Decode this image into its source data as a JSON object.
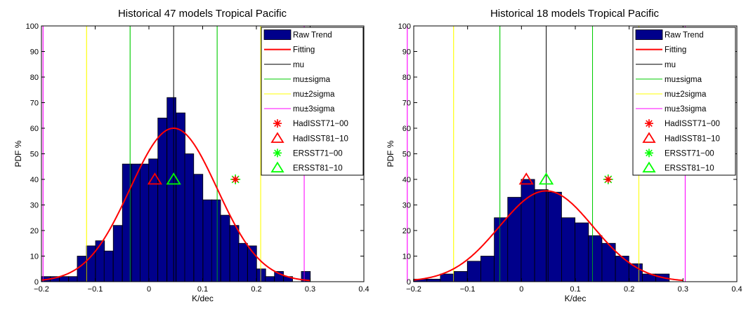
{
  "chart_data": [
    {
      "type": "bar",
      "title": "Historical 47 models Tropical Pacific",
      "xlabel": "K/dec",
      "ylabel": "PDF %",
      "xlim": [
        -0.2,
        0.4
      ],
      "ylim": [
        0,
        100
      ],
      "xticks": [
        -0.2,
        -0.1,
        0,
        0.1,
        0.2,
        0.3,
        0.4
      ],
      "yticks": [
        0,
        10,
        20,
        30,
        40,
        50,
        60,
        70,
        80,
        90,
        100
      ],
      "xtick_labels": [
        "−0.2",
        "−0.1",
        "0",
        "0.1",
        "0.2",
        "0.3",
        "0.4"
      ],
      "ytick_labels": [
        "0",
        "10",
        "20",
        "30",
        "40",
        "50",
        "60",
        "70",
        "80",
        "90",
        "100"
      ],
      "bin_width": 0.0167,
      "bins": [
        {
          "x": -0.192,
          "y": 2
        },
        {
          "x": -0.175,
          "y": 2
        },
        {
          "x": -0.158,
          "y": 2
        },
        {
          "x": -0.141,
          "y": 2
        },
        {
          "x": -0.125,
          "y": 10
        },
        {
          "x": -0.108,
          "y": 14
        },
        {
          "x": -0.091,
          "y": 16
        },
        {
          "x": -0.075,
          "y": 12
        },
        {
          "x": -0.058,
          "y": 22
        },
        {
          "x": -0.041,
          "y": 46
        },
        {
          "x": -0.024,
          "y": 46
        },
        {
          "x": -0.008,
          "y": 46
        },
        {
          "x": 0.008,
          "y": 48
        },
        {
          "x": 0.025,
          "y": 64
        },
        {
          "x": 0.042,
          "y": 72
        },
        {
          "x": 0.059,
          "y": 66
        },
        {
          "x": 0.075,
          "y": 50
        },
        {
          "x": 0.092,
          "y": 42
        },
        {
          "x": 0.109,
          "y": 32
        },
        {
          "x": 0.125,
          "y": 32
        },
        {
          "x": 0.142,
          "y": 26
        },
        {
          "x": 0.159,
          "y": 22
        },
        {
          "x": 0.175,
          "y": 15
        },
        {
          "x": 0.192,
          "y": 14
        },
        {
          "x": 0.209,
          "y": 5
        },
        {
          "x": 0.225,
          "y": 2
        },
        {
          "x": 0.242,
          "y": 4
        },
        {
          "x": 0.259,
          "y": 2
        },
        {
          "x": 0.292,
          "y": 4
        }
      ],
      "fit": {
        "mu": 0.046,
        "sigma": 0.081,
        "peak": 60
      },
      "lines": {
        "mu": 0.046,
        "sigma": [
          -0.035,
          0.127
        ],
        "two_sigma": [
          -0.116,
          0.208
        ],
        "three_sigma": [
          -0.197,
          0.289
        ]
      },
      "markers": [
        {
          "name": "HadISST71-00",
          "x": 0.161,
          "y": 40
        },
        {
          "name": "HadISST81-10",
          "x": 0.011,
          "y": 40
        },
        {
          "name": "ERSST71-00",
          "x": 0.161,
          "y": 40
        },
        {
          "name": "ERSST81-10",
          "x": 0.046,
          "y": 40
        }
      ],
      "legend": {
        "position": "top-right",
        "entries": [
          "Raw Trend",
          "Fitting",
          "mu",
          "mu±sigma",
          "mu±2sigma",
          "mu±3sigma",
          "HadISST71−00",
          "HadISST81−10",
          "ERSST71−00",
          "ERSST81−10"
        ]
      }
    },
    {
      "type": "bar",
      "title": "Historical 18 models Tropical Pacific",
      "xlabel": "K/dec",
      "ylabel": "PDF %",
      "xlim": [
        -0.2,
        0.4
      ],
      "ylim": [
        0,
        100
      ],
      "xticks": [
        -0.2,
        -0.1,
        0,
        0.1,
        0.2,
        0.3,
        0.4
      ],
      "yticks": [
        0,
        10,
        20,
        30,
        40,
        50,
        60,
        70,
        80,
        90,
        100
      ],
      "xtick_labels": [
        "−0.2",
        "−0.1",
        "0",
        "0.1",
        "0.2",
        "0.3",
        "0.4"
      ],
      "ytick_labels": [
        "0",
        "10",
        "20",
        "30",
        "40",
        "50",
        "60",
        "70",
        "80",
        "90",
        "100"
      ],
      "bin_width": 0.025,
      "bins": [
        {
          "x": -0.188,
          "y": 1
        },
        {
          "x": -0.163,
          "y": 1
        },
        {
          "x": -0.138,
          "y": 3
        },
        {
          "x": -0.113,
          "y": 4
        },
        {
          "x": -0.088,
          "y": 8
        },
        {
          "x": -0.063,
          "y": 10
        },
        {
          "x": -0.038,
          "y": 25
        },
        {
          "x": -0.013,
          "y": 33
        },
        {
          "x": 0.012,
          "y": 40
        },
        {
          "x": 0.037,
          "y": 36
        },
        {
          "x": 0.062,
          "y": 35
        },
        {
          "x": 0.087,
          "y": 25
        },
        {
          "x": 0.112,
          "y": 23
        },
        {
          "x": 0.137,
          "y": 18
        },
        {
          "x": 0.162,
          "y": 15
        },
        {
          "x": 0.187,
          "y": 10
        },
        {
          "x": 0.212,
          "y": 7
        },
        {
          "x": 0.237,
          "y": 3
        },
        {
          "x": 0.262,
          "y": 3
        },
        {
          "x": 0.287,
          "y": 0
        }
      ],
      "fit": {
        "mu": 0.046,
        "sigma": 0.087,
        "peak": 35.5
      },
      "lines": {
        "mu": 0.046,
        "sigma": [
          -0.04,
          0.132
        ],
        "two_sigma": [
          -0.126,
          0.218
        ],
        "three_sigma": [
          -0.212,
          0.304
        ]
      },
      "markers": [
        {
          "name": "HadISST71-00",
          "x": 0.161,
          "y": 40
        },
        {
          "name": "HadISST81-10",
          "x": 0.009,
          "y": 40
        },
        {
          "name": "ERSST71-00",
          "x": 0.161,
          "y": 40
        },
        {
          "name": "ERSST81-10",
          "x": 0.046,
          "y": 40
        }
      ],
      "legend": {
        "position": "top-right",
        "entries": [
          "Raw Trend",
          "Fitting",
          "mu",
          "mu±sigma",
          "mu±2sigma",
          "mu±3sigma",
          "HadISST71−00",
          "HadISST81−10",
          "ERSST71−00",
          "ERSST81−10"
        ]
      }
    }
  ],
  "colors": {
    "bar_fill": "#00008b",
    "fit": "#ff0000",
    "mu": "#000000",
    "sigma": "#00cc00",
    "two_sigma": "#ffff00",
    "three_sigma": "#ff00ff",
    "hadisst": "#ff0000",
    "ersst": "#00ff00"
  }
}
